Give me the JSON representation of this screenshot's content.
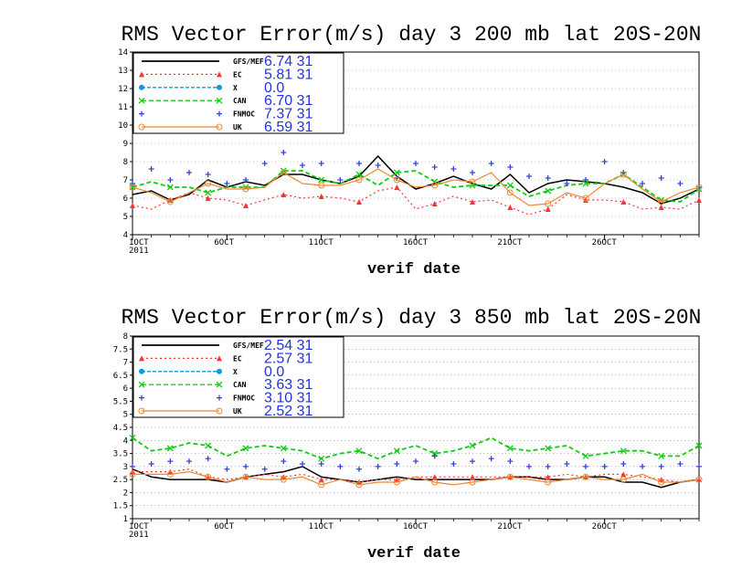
{
  "chart_data": [
    {
      "type": "line",
      "title": "RMS Vector Error(m/s) day 3  200 mb    lat 20S-20N",
      "xlabel": "verif date",
      "ylabel": "",
      "x_dates": [
        "2011-10-01",
        "2011-10-02",
        "2011-10-03",
        "2011-10-04",
        "2011-10-05",
        "2011-10-06",
        "2011-10-07",
        "2011-10-08",
        "2011-10-09",
        "2011-10-10",
        "2011-10-11",
        "2011-10-12",
        "2011-10-13",
        "2011-10-14",
        "2011-10-15",
        "2011-10-16",
        "2011-10-17",
        "2011-10-18",
        "2011-10-19",
        "2011-10-20",
        "2011-10-21",
        "2011-10-22",
        "2011-10-23",
        "2011-10-24",
        "2011-10-25",
        "2011-10-26",
        "2011-10-27",
        "2011-10-28",
        "2011-10-29",
        "2011-10-30",
        "2011-10-31"
      ],
      "x_ticks": [
        {
          "label": "1OCT",
          "sub": "2011",
          "x": "2011-10-01"
        },
        {
          "label": "6OCT",
          "x": "2011-10-06"
        },
        {
          "label": "11OCT",
          "x": "2011-10-11"
        },
        {
          "label": "16OCT",
          "x": "2011-10-16"
        },
        {
          "label": "21OCT",
          "x": "2011-10-21"
        },
        {
          "label": "26OCT",
          "x": "2011-10-26"
        }
      ],
      "ylim": [
        4,
        14
      ],
      "yticks": [
        "4",
        "5",
        "6",
        "7",
        "8",
        "9",
        "10",
        "11",
        "12",
        "13",
        "14"
      ],
      "grid": "horizontal dotted",
      "legend_position": "top-left",
      "series": [
        {
          "name": "GFS/MEF",
          "legend_value": "6.74  31",
          "color": "#000000",
          "dash": "",
          "marker": "",
          "values": [
            6.2,
            6.4,
            5.9,
            6.2,
            7.0,
            6.6,
            6.9,
            6.7,
            7.3,
            7.3,
            7.0,
            6.8,
            7.2,
            8.3,
            7.2,
            6.5,
            6.8,
            7.2,
            6.8,
            6.5,
            7.3,
            6.3,
            6.8,
            7.0,
            6.9,
            6.8,
            6.6,
            6.3,
            5.7,
            6.0,
            6.5
          ]
        },
        {
          "name": "EC",
          "legend_value": "5.81  31",
          "color": "#ff3333",
          "dash": "2,3",
          "marker": "triangle",
          "values": [
            5.6,
            5.4,
            5.9,
            6.3,
            6.0,
            5.9,
            5.6,
            5.9,
            6.2,
            6.0,
            6.1,
            6.0,
            5.8,
            6.4,
            6.6,
            5.4,
            5.7,
            6.1,
            5.8,
            5.9,
            5.5,
            5.1,
            5.4,
            6.2,
            5.9,
            5.9,
            5.8,
            5.4,
            5.5,
            5.4,
            5.9
          ]
        },
        {
          "name": "X",
          "legend_value": "0.0",
          "color": "#1199dd",
          "dash": "4,2",
          "marker": "circle",
          "values": []
        },
        {
          "name": "CAN",
          "legend_value": "6.70  31",
          "color": "#11cc11",
          "dash": "5,3",
          "marker": "x",
          "values": [
            6.6,
            6.9,
            6.6,
            6.6,
            6.3,
            6.6,
            6.6,
            6.6,
            7.5,
            7.5,
            7.0,
            6.8,
            7.3,
            6.7,
            7.4,
            7.5,
            6.9,
            6.6,
            6.7,
            6.7,
            6.7,
            6.1,
            6.4,
            6.7,
            6.8,
            6.8,
            7.3,
            6.6,
            5.9,
            5.8,
            6.5
          ]
        },
        {
          "name": "FNMOC",
          "legend_value": "7.37  31",
          "color": "#3344dd",
          "dash": "",
          "marker": "plus",
          "values": [
            6.8,
            7.6,
            7.0,
            7.4,
            7.3,
            6.8,
            7.0,
            7.9,
            8.5,
            7.8,
            7.9,
            7.0,
            7.9,
            7.8,
            7.1,
            7.9,
            7.7,
            7.6,
            7.4,
            7.9,
            7.7,
            7.2,
            7.1,
            6.8,
            7.0,
            8.0,
            7.4,
            6.8,
            7.1,
            6.8,
            6.6
          ]
        },
        {
          "name": "UK",
          "legend_value": "6.59  31",
          "color": "#ee8833",
          "dash": "",
          "marker": "circle-open",
          "values": [
            6.6,
            6.3,
            5.8,
            6.3,
            6.8,
            6.5,
            6.5,
            6.6,
            7.4,
            6.8,
            6.7,
            6.7,
            7.0,
            7.6,
            7.0,
            6.6,
            6.7,
            7.0,
            6.9,
            7.4,
            6.3,
            5.6,
            5.7,
            6.3,
            6.0,
            6.8,
            7.3,
            6.5,
            5.8,
            6.3,
            6.6
          ]
        }
      ]
    },
    {
      "type": "line",
      "title": "RMS Vector Error(m/s) day 3  850 mb    lat 20S-20N",
      "xlabel": "verif date",
      "ylabel": "",
      "x_dates": [
        "2011-10-01",
        "2011-10-02",
        "2011-10-03",
        "2011-10-04",
        "2011-10-05",
        "2011-10-06",
        "2011-10-07",
        "2011-10-08",
        "2011-10-09",
        "2011-10-10",
        "2011-10-11",
        "2011-10-12",
        "2011-10-13",
        "2011-10-14",
        "2011-10-15",
        "2011-10-16",
        "2011-10-17",
        "2011-10-18",
        "2011-10-19",
        "2011-10-20",
        "2011-10-21",
        "2011-10-22",
        "2011-10-23",
        "2011-10-24",
        "2011-10-25",
        "2011-10-26",
        "2011-10-27",
        "2011-10-28",
        "2011-10-29",
        "2011-10-30",
        "2011-10-31"
      ],
      "x_ticks": [
        {
          "label": "1OCT",
          "sub": "2011",
          "x": "2011-10-01"
        },
        {
          "label": "6OCT",
          "x": "2011-10-06"
        },
        {
          "label": "11OCT",
          "x": "2011-10-11"
        },
        {
          "label": "16OCT",
          "x": "2011-10-16"
        },
        {
          "label": "21OCT",
          "x": "2011-10-21"
        },
        {
          "label": "26OCT",
          "x": "2011-10-26"
        }
      ],
      "ylim": [
        1,
        8
      ],
      "yticks": [
        "1",
        "1.5",
        "2",
        "2.5",
        "3",
        "3.5",
        "4",
        "4.5",
        "5",
        "5.5",
        "6",
        "6.5",
        "7",
        "7.5",
        "8"
      ],
      "grid": "horizontal dotted",
      "legend_position": "top-left",
      "series": [
        {
          "name": "GFS/MEF",
          "legend_value": "2.54  31",
          "color": "#000000",
          "dash": "",
          "marker": "",
          "values": [
            2.9,
            2.6,
            2.5,
            2.5,
            2.5,
            2.4,
            2.6,
            2.7,
            2.8,
            3.0,
            2.6,
            2.5,
            2.4,
            2.5,
            2.6,
            2.5,
            2.5,
            2.5,
            2.5,
            2.5,
            2.6,
            2.6,
            2.5,
            2.5,
            2.6,
            2.6,
            2.4,
            2.4,
            2.2,
            2.4,
            2.5
          ]
        },
        {
          "name": "EC",
          "legend_value": "2.57  31",
          "color": "#ff3333",
          "dash": "2,3",
          "marker": "triangle",
          "values": [
            2.8,
            2.8,
            2.8,
            2.9,
            2.6,
            2.5,
            2.6,
            2.7,
            2.6,
            2.7,
            2.5,
            2.5,
            2.4,
            2.5,
            2.5,
            2.6,
            2.6,
            2.6,
            2.6,
            2.6,
            2.6,
            2.6,
            2.6,
            2.7,
            2.6,
            2.7,
            2.7,
            2.6,
            2.5,
            2.4,
            2.5
          ]
        },
        {
          "name": "X",
          "legend_value": "0.0",
          "color": "#1199dd",
          "dash": "4,2",
          "marker": "circle",
          "values": []
        },
        {
          "name": "CAN",
          "legend_value": "3.63  31",
          "color": "#11cc11",
          "dash": "5,3",
          "marker": "x",
          "values": [
            4.1,
            3.6,
            3.7,
            3.9,
            3.8,
            3.4,
            3.7,
            3.8,
            3.7,
            3.6,
            3.3,
            3.5,
            3.6,
            3.3,
            3.6,
            3.8,
            3.5,
            3.6,
            3.8,
            4.1,
            3.7,
            3.6,
            3.7,
            3.8,
            3.4,
            3.5,
            3.6,
            3.6,
            3.4,
            3.4,
            3.8
          ]
        },
        {
          "name": "FNMOC",
          "legend_value": "3.10  31",
          "color": "#3344dd",
          "dash": "",
          "marker": "plus",
          "values": [
            3.0,
            3.1,
            3.2,
            3.2,
            3.3,
            2.9,
            3.0,
            2.9,
            3.2,
            3.1,
            3.1,
            3.0,
            2.9,
            3.0,
            3.1,
            3.2,
            3.4,
            3.1,
            3.2,
            3.3,
            3.2,
            3.0,
            3.0,
            3.1,
            3.0,
            3.0,
            3.1,
            3.0,
            3.0,
            3.1,
            3.0
          ]
        },
        {
          "name": "UK",
          "legend_value": "2.52  31",
          "color": "#ee8833",
          "dash": "",
          "marker": "circle-open",
          "values": [
            2.7,
            2.7,
            2.7,
            2.8,
            2.6,
            2.4,
            2.6,
            2.5,
            2.5,
            2.6,
            2.3,
            2.5,
            2.3,
            2.4,
            2.4,
            2.6,
            2.4,
            2.3,
            2.4,
            2.5,
            2.6,
            2.5,
            2.4,
            2.5,
            2.6,
            2.5,
            2.5,
            2.7,
            2.4,
            2.4,
            2.5
          ]
        }
      ]
    }
  ]
}
